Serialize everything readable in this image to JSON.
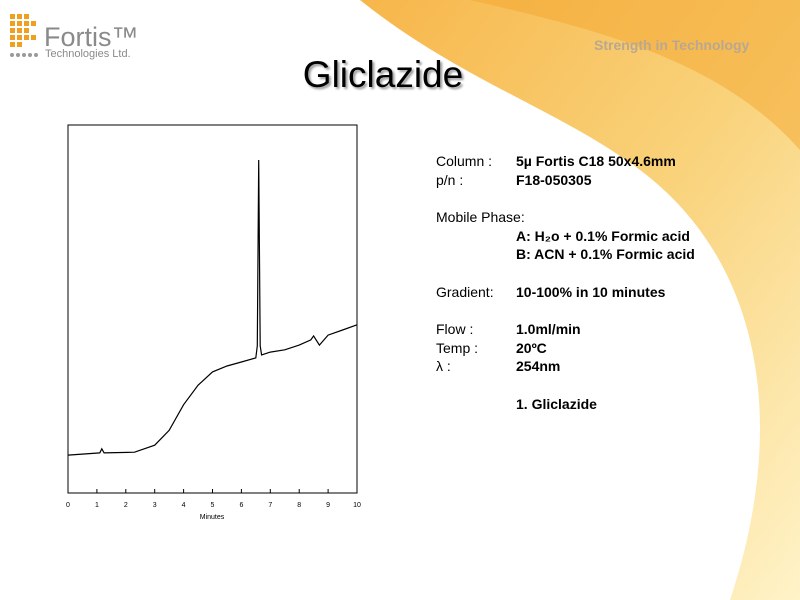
{
  "header": {
    "brand": "Fortis™",
    "brand_subtitle": "Technologies Ltd.",
    "tagline": "Strength in Technology",
    "title": "Gliclazide"
  },
  "chart_data": {
    "type": "line",
    "x_label": "Minutes",
    "color": "#000000",
    "x": [
      0,
      1.1,
      1.17,
      1.25,
      2.3,
      3,
      3.5,
      4,
      4.5,
      5,
      5.5,
      6,
      6.5,
      6.55,
      6.6,
      6.65,
      6.7,
      7,
      7.5,
      8,
      8.4,
      8.5,
      8.7,
      9,
      9.5,
      10
    ],
    "values": [
      10.3,
      10.9,
      12,
      10.9,
      11.1,
      13,
      17,
      24,
      29.3,
      32.9,
      34.5,
      35.6,
      36.7,
      40,
      90.5,
      40,
      37.5,
      38.3,
      38.9,
      40.2,
      41.6,
      42.7,
      40.2,
      42.9,
      44.3,
      45.7
    ],
    "xlim": [
      0,
      10
    ],
    "xticks": [
      0,
      1,
      2,
      3,
      4,
      5,
      6,
      7,
      8,
      9,
      10
    ],
    "ylim": [
      0,
      100
    ]
  },
  "details": {
    "column": {
      "label": "Column :",
      "value": "5µ Fortis C18 50x4.6mm"
    },
    "pn": {
      "label": "p/n :",
      "value": "F18-050305"
    },
    "mobile_phase": {
      "label": "Mobile Phase:",
      "lines": [
        "A: H₂o + 0.1% Formic acid",
        "B: ACN + 0.1% Formic acid"
      ]
    },
    "gradient": {
      "label": "Gradient:",
      "value": "10-100% in 10 minutes"
    },
    "flow": {
      "label": "Flow :",
      "value": "1.0ml/min"
    },
    "temp": {
      "label": "Temp :",
      "value": "20ºC"
    },
    "wavelength": {
      "label": "λ :",
      "value": "254nm"
    },
    "peaks": [
      "1. Gliclazide"
    ]
  }
}
